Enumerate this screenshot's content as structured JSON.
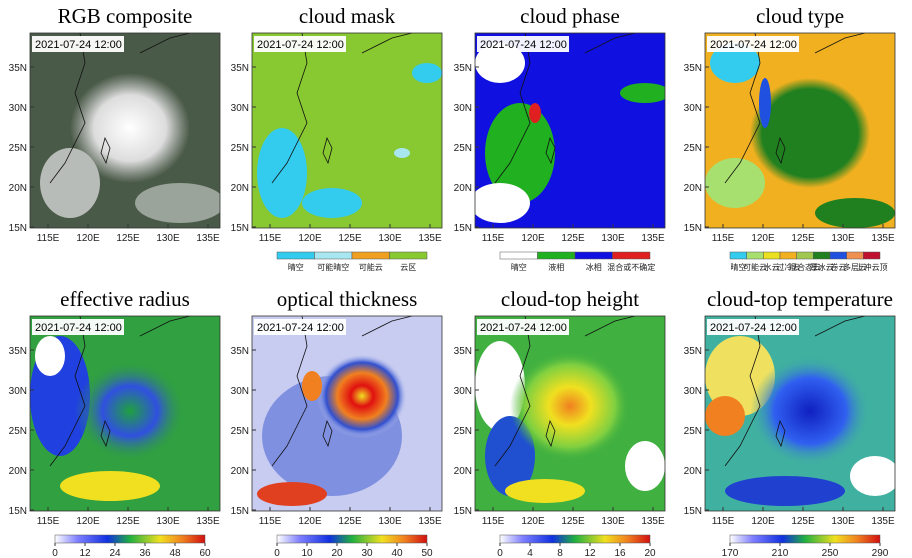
{
  "timestamp": "2021-07-24 12:00",
  "lon_ticks": [
    "115E",
    "120E",
    "125E",
    "130E",
    "135E"
  ],
  "lat_ticks": [
    "35N",
    "30N",
    "25N",
    "20N",
    "15N"
  ],
  "panels": [
    {
      "title": "RGB composite"
    },
    {
      "title": "cloud mask",
      "legend": {
        "labels": [
          "晴空",
          "可能晴空",
          "可能云",
          "云区"
        ],
        "colors": [
          "#33ccee",
          "#a8e6f0",
          "#f0a020",
          "#88c830"
        ]
      }
    },
    {
      "title": "cloud phase",
      "legend": {
        "labels": [
          "晴空",
          "液相",
          "冰相",
          "混合或不确定"
        ],
        "colors": [
          "#ffffff",
          "#20b020",
          "#1010e0",
          "#e02020"
        ]
      }
    },
    {
      "title": "cloud type",
      "legend": {
        "labels": [
          "晴空",
          "可能云",
          "水云",
          "过冷云",
          "混合态云",
          "厚冰云",
          "卷云",
          "多层云",
          "上冲云顶"
        ],
        "colors": [
          "#33ccee",
          "#a8e070",
          "#e8e020",
          "#f0b020",
          "#a0c850",
          "#208020",
          "#2050e0",
          "#f09050",
          "#c01030"
        ]
      }
    },
    {
      "title": "effective radius",
      "colorbar": {
        "ticks": [
          0,
          12,
          24,
          36,
          48,
          60
        ]
      }
    },
    {
      "title": "optical thickness",
      "colorbar": {
        "ticks": [
          0,
          10,
          20,
          30,
          40,
          50
        ]
      }
    },
    {
      "title": "cloud-top height",
      "colorbar": {
        "ticks": [
          0,
          4,
          8,
          12,
          16,
          20
        ]
      }
    },
    {
      "title": "cloud-top temperature",
      "colorbar": {
        "ticks": [
          170,
          210,
          250,
          290
        ]
      }
    }
  ]
}
